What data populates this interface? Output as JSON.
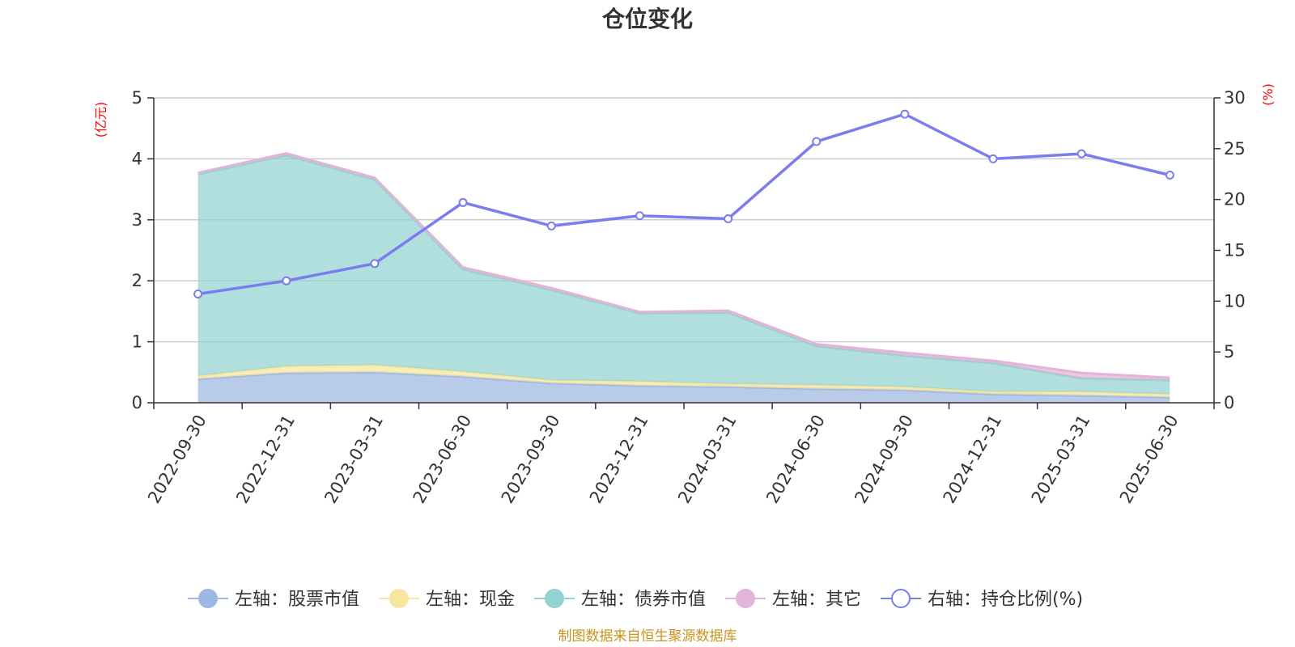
{
  "chart_data": {
    "type": "area",
    "title": "仓位变化",
    "source": "制图数据来自恒生聚源数据库",
    "left_unit": "(亿元)",
    "right_unit": "(%)",
    "categories": [
      "2022-09-30",
      "2022-12-31",
      "2023-03-31",
      "2023-06-30",
      "2023-09-30",
      "2023-12-31",
      "2024-03-31",
      "2024-06-30",
      "2024-09-30",
      "2024-12-31",
      "2025-03-31",
      "2025-06-30"
    ],
    "left_axis": {
      "min": 0,
      "max": 5,
      "ticks": [
        "0",
        "1",
        "2",
        "3",
        "4",
        "5"
      ]
    },
    "right_axis": {
      "min": 0,
      "max": 30,
      "ticks": [
        "0",
        "5",
        "10",
        "15",
        "20",
        "25",
        "30"
      ]
    },
    "grid": true,
    "legend_position": "bottom",
    "series": [
      {
        "name": "左轴：股票市值",
        "axis": "left",
        "type": "area",
        "stack": true,
        "color": "#9db8e2",
        "values": [
          0.39,
          0.49,
          0.5,
          0.43,
          0.32,
          0.28,
          0.26,
          0.23,
          0.21,
          0.14,
          0.12,
          0.09
        ]
      },
      {
        "name": "左轴：现金",
        "axis": "left",
        "type": "area",
        "stack": true,
        "color": "#f7e6a0",
        "values": [
          0.05,
          0.11,
          0.12,
          0.08,
          0.05,
          0.07,
          0.05,
          0.06,
          0.05,
          0.04,
          0.06,
          0.05
        ]
      },
      {
        "name": "左轴：债券市值",
        "axis": "left",
        "type": "area",
        "stack": true,
        "color": "#93d3d1",
        "values": [
          3.31,
          3.46,
          3.04,
          1.68,
          1.48,
          1.12,
          1.17,
          0.64,
          0.51,
          0.47,
          0.22,
          0.23
        ]
      },
      {
        "name": "左轴：其它",
        "axis": "left",
        "type": "area",
        "stack": true,
        "color": "#e4b3d8",
        "values": [
          0.02,
          0.03,
          0.03,
          0.03,
          0.03,
          0.02,
          0.03,
          0.03,
          0.05,
          0.04,
          0.09,
          0.04
        ]
      },
      {
        "name": "右轴：持仓比例(%)",
        "axis": "right",
        "type": "line",
        "color": "#7b7cee",
        "values": [
          10.7,
          12.0,
          13.7,
          19.7,
          17.4,
          18.4,
          18.1,
          25.7,
          28.4,
          24.0,
          24.5,
          22.4
        ]
      }
    ]
  }
}
